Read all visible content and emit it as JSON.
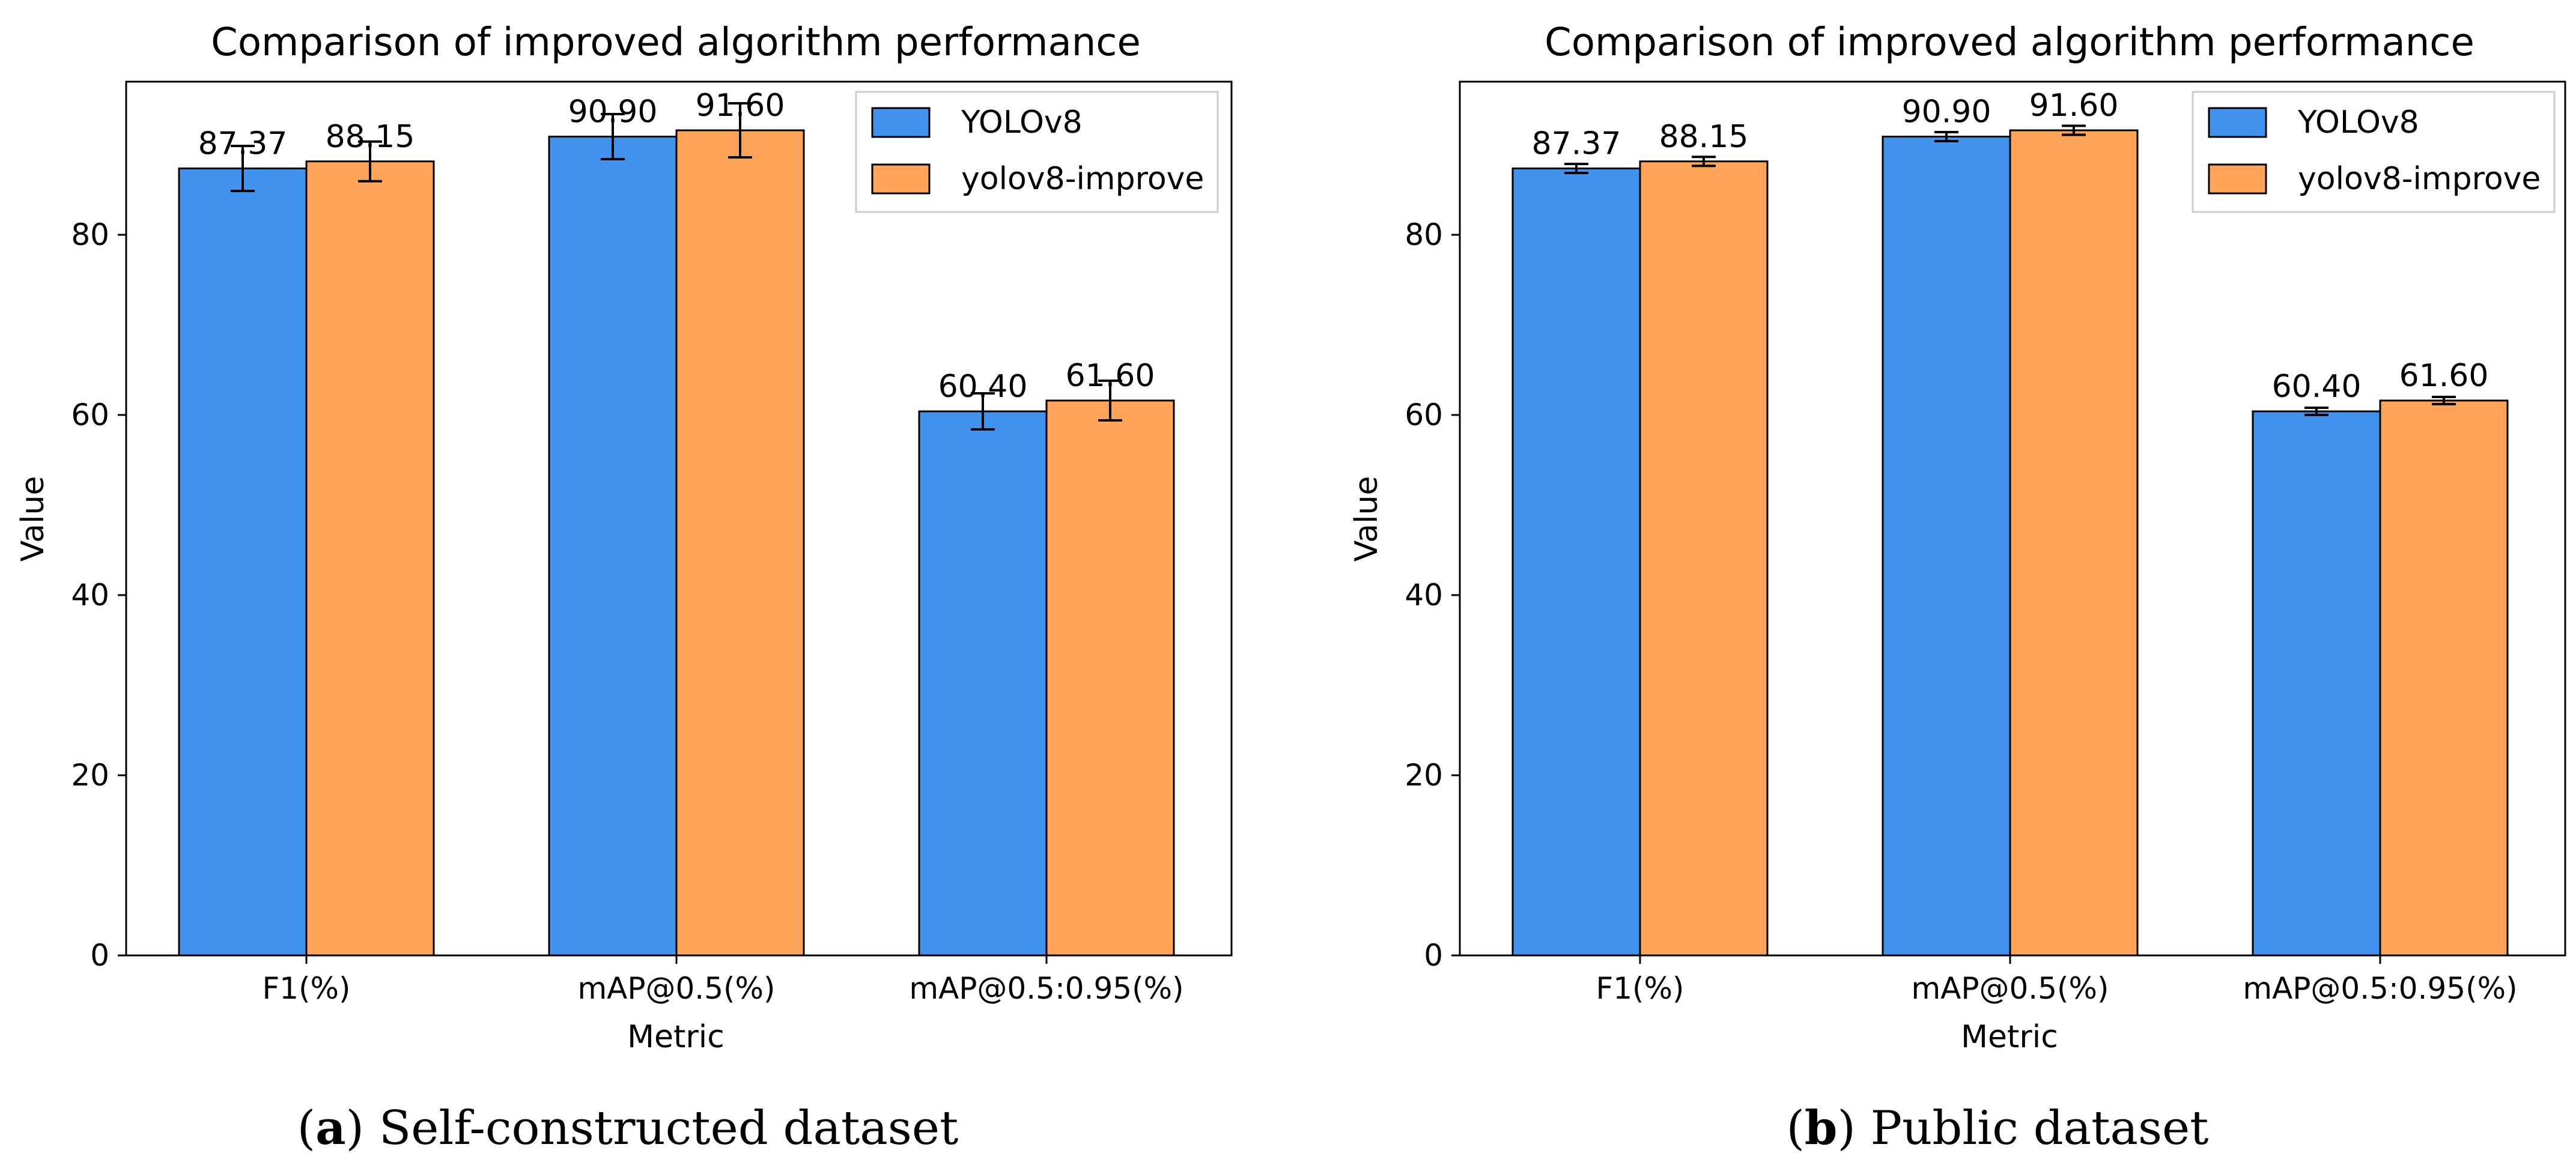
{
  "colors": {
    "series1": "#4193ED",
    "series2": "#FFA458",
    "edge": "#000000"
  },
  "chart_data": [
    {
      "type": "bar",
      "title": "Comparison of improved algorithm performance",
      "xlabel": "Metric",
      "ylabel": "Value",
      "ylim": [
        0,
        97
      ],
      "yticks": [
        0,
        20,
        40,
        60,
        80
      ],
      "ytick_labels": [
        "0",
        "20",
        "40",
        "60",
        "80"
      ],
      "categories": [
        "F1(%)",
        "mAP@0.5(%)",
        "mAP@0.5:0.95(%)"
      ],
      "legend_position": "top-right",
      "series": [
        {
          "name": "YOLOv8",
          "values": [
            87.37,
            90.9,
            60.4
          ],
          "labels": [
            "87.37",
            "90.90",
            "60.40"
          ],
          "errors": [
            2.5,
            2.5,
            2.0
          ]
        },
        {
          "name": "yolov8-improve",
          "values": [
            88.15,
            91.6,
            61.6
          ],
          "labels": [
            "88.15",
            "91.60",
            "61.60"
          ],
          "errors": [
            2.2,
            3.0,
            2.2
          ]
        }
      ],
      "caption_letter": "a",
      "caption_text": " Self-constructed dataset"
    },
    {
      "type": "bar",
      "title": "Comparison of improved algorithm performance",
      "xlabel": "Metric",
      "ylabel": "Value",
      "ylim": [
        0,
        97
      ],
      "yticks": [
        0,
        20,
        40,
        60,
        80
      ],
      "ytick_labels": [
        "0",
        "20",
        "40",
        "60",
        "80"
      ],
      "categories": [
        "F1(%)",
        "mAP@0.5(%)",
        "mAP@0.5:0.95(%)"
      ],
      "legend_position": "top-right",
      "series": [
        {
          "name": "YOLOv8",
          "values": [
            87.37,
            90.9,
            60.4
          ],
          "labels": [
            "87.37",
            "90.90",
            "60.40"
          ],
          "errors": [
            0.5,
            0.5,
            0.4
          ]
        },
        {
          "name": "yolov8-improve",
          "values": [
            88.15,
            91.6,
            61.6
          ],
          "labels": [
            "88.15",
            "91.60",
            "61.60"
          ],
          "errors": [
            0.5,
            0.5,
            0.4
          ]
        }
      ],
      "caption_letter": "b",
      "caption_text": " Public dataset"
    }
  ]
}
